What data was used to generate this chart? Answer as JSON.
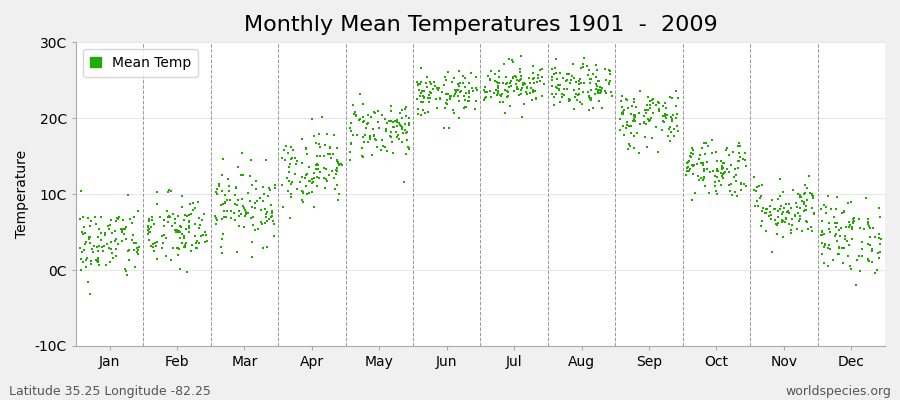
{
  "title": "Monthly Mean Temperatures 1901  -  2009",
  "ylabel": "Temperature",
  "xlabel": "",
  "figure_bg_color": "#f0f0f0",
  "plot_bg_color": "#ffffff",
  "point_color": "#22aa00",
  "point_marker": "s",
  "point_size": 3,
  "legend_label": "Mean Temp",
  "bottom_left_text": "Latitude 35.25 Longitude -82.25",
  "bottom_right_text": "worldspecies.org",
  "ylim": [
    -10,
    30
  ],
  "yticks": [
    -10,
    0,
    10,
    20,
    30
  ],
  "ytick_labels": [
    "-10C",
    "0C",
    "10C",
    "20C",
    "30C"
  ],
  "month_names": [
    "Jan",
    "Feb",
    "Mar",
    "Apr",
    "May",
    "Jun",
    "Jul",
    "Aug",
    "Sep",
    "Oct",
    "Nov",
    "Dec"
  ],
  "monthly_means": [
    3.5,
    5.0,
    8.5,
    13.5,
    18.5,
    23.0,
    24.5,
    24.0,
    20.0,
    13.5,
    8.0,
    4.5
  ],
  "monthly_stds": [
    2.5,
    2.5,
    2.5,
    2.5,
    2.0,
    1.5,
    1.5,
    1.5,
    2.0,
    2.0,
    2.0,
    2.5
  ],
  "n_years": 109,
  "title_fontsize": 16,
  "axis_fontsize": 10,
  "tick_fontsize": 10,
  "annotation_fontsize": 9,
  "dashed_line_color": "#999999",
  "spine_color": "#bbbbbb"
}
